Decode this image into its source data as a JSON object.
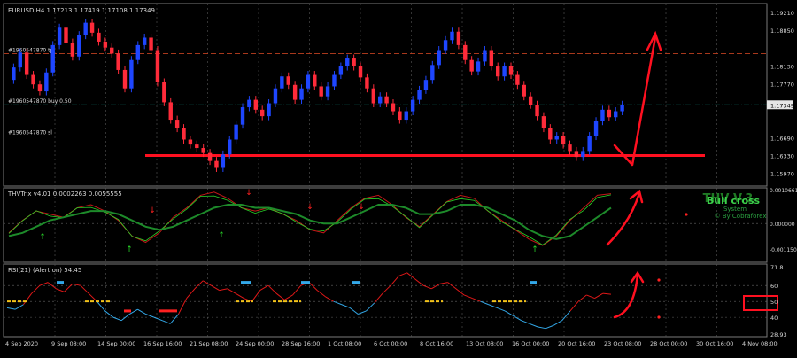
{
  "main_panel": {
    "header": "EURUSD,H4 1.17213 1.17419 1.17108 1.17349",
    "price_ticks": [
      "1.19210",
      "1.18850",
      "1.18130",
      "1.17770",
      "1.17349",
      "1.16690",
      "1.16330",
      "1.15970"
    ],
    "current_price": "1.17349",
    "order_labels": [
      {
        "text": "#1960547870 tp",
        "price": 1.1838
      },
      {
        "text": "#1960547870 buy 0.50",
        "price": 1.1735
      },
      {
        "text": "#1960547870 sl",
        "price": 1.1672
      }
    ],
    "support_price": 1.1633,
    "colors": {
      "bull": "#1e46ff",
      "bear": "#ff2b3a",
      "support": "#ff1020",
      "buy_line": "#10b0a0",
      "order_line": "#c04020"
    }
  },
  "thv_panel": {
    "header": "THVTrix v4.01 0.0002263 0.0055555",
    "ticks": [
      "0.00106613",
      "0.000000",
      "-0.0011502"
    ],
    "watermark_title": "THV V.3",
    "watermark_overlay": "Bull cross",
    "watermark_subtitle": "System",
    "watermark_credit": "© By Cobraforex"
  },
  "rsi_panel": {
    "header": "RSI(21) (Alert on) 54.45",
    "ticks": [
      "71.8",
      "60",
      "50",
      "40",
      "28.93"
    ],
    "highlight_level": "50"
  },
  "x_axis": {
    "labels": [
      "4 Sep 2020",
      "9 Sep 08:00",
      "14 Sep 00:00",
      "16 Sep 16:00",
      "21 Sep 08:00",
      "24 Sep 00:00",
      "28 Sep 16:00",
      "1 Oct 08:00",
      "6 Oct 00:00",
      "8 Oct 16:00",
      "13 Oct 08:00",
      "16 Oct 00:00",
      "20 Oct 16:00",
      "23 Oct 08:00",
      "28 Oct 00:00",
      "30 Oct 16:00",
      "4 Nov 08:00"
    ]
  },
  "chart_data": {
    "type": "candlestick",
    "title": "EURUSD,H4",
    "ylim": [
      1.1575,
      1.1935
    ],
    "close_path": [
      1.1785,
      1.181,
      1.184,
      1.1795,
      1.1776,
      1.1762,
      1.18,
      1.1855,
      1.189,
      1.186,
      1.1832,
      1.1875,
      1.19,
      1.188,
      1.1862,
      1.185,
      1.1838,
      1.1805,
      1.1768,
      1.1825,
      1.1855,
      1.187,
      1.1845,
      1.178,
      1.174,
      1.1705,
      1.1688,
      1.1665,
      1.1655,
      1.1648,
      1.1638,
      1.1622,
      1.1608,
      1.1635,
      1.1665,
      1.1695,
      1.173,
      1.1745,
      1.1725,
      1.1712,
      1.1738,
      1.1768,
      1.1792,
      1.1775,
      1.1745,
      1.1768,
      1.1795,
      1.1772,
      1.1752,
      1.1772,
      1.1795,
      1.1812,
      1.1828,
      1.1812,
      1.179,
      1.1768,
      1.1738,
      1.1752,
      1.1738,
      1.1722,
      1.1705,
      1.1722,
      1.1745,
      1.1765,
      1.1785,
      1.1815,
      1.1845,
      1.1865,
      1.1882,
      1.1855,
      1.1825,
      1.1802,
      1.1822,
      1.1845,
      1.1812,
      1.1792,
      1.1812,
      1.1795,
      1.1775,
      1.1752,
      1.1735,
      1.1712,
      1.1688,
      1.1665,
      1.1672,
      1.1655,
      1.1642,
      1.163,
      1.1642,
      1.1672,
      1.1702,
      1.1725,
      1.171,
      1.1722,
      1.1735
    ],
    "support_level": 1.1633,
    "thv_fast": [
      -0.0003,
      0.0001,
      0.0004,
      0.0003,
      0.0002,
      0.0005,
      0.0006,
      0.0004,
      0.0001,
      -0.0004,
      -0.0006,
      -0.0003,
      0.0002,
      0.0005,
      0.0009,
      0.001,
      0.0008,
      0.0005,
      0.0004,
      0.0005,
      0.0003,
      0.0001,
      -0.0002,
      -0.0003,
      0.0001,
      0.0005,
      0.0008,
      0.0009,
      0.0006,
      0.0002,
      -0.0001,
      0.0003,
      0.0007,
      0.0009,
      0.0008,
      0.0004,
      0.0001,
      -0.0002,
      -0.0005,
      -0.0007,
      -0.0004,
      0.0001,
      0.0005,
      0.0009,
      0.00095
    ],
    "thv_slow": [
      -0.0004,
      -0.0003,
      -0.0001,
      0.0001,
      0.0002,
      0.0003,
      0.0004,
      0.0004,
      0.0003,
      0.0001,
      -0.0001,
      -0.0002,
      -0.0001,
      0.0001,
      0.0003,
      0.0005,
      0.0006,
      0.0006,
      0.0005,
      0.0005,
      0.0004,
      0.0003,
      0.0001,
      0.0,
      0.0,
      0.0002,
      0.0004,
      0.0006,
      0.0006,
      0.0005,
      0.0003,
      0.0003,
      0.0004,
      0.0006,
      0.0006,
      0.0005,
      0.0003,
      0.0001,
      -0.0002,
      -0.0004,
      -0.0005,
      -0.0004,
      -0.0001,
      0.0002,
      0.0005
    ],
    "rsi": [
      46,
      45,
      48,
      55,
      60,
      62,
      58,
      56,
      61,
      60,
      55,
      50,
      44,
      40,
      38,
      42,
      45,
      42,
      40,
      38,
      36,
      42,
      52,
      58,
      63,
      60,
      57,
      58,
      55,
      52,
      50,
      57,
      60,
      55,
      51,
      54,
      60,
      62,
      57,
      53,
      50,
      48,
      46,
      42,
      44,
      49,
      55,
      60,
      66,
      68,
      64,
      60,
      58,
      61,
      62,
      58,
      54,
      52,
      50,
      48,
      46,
      44,
      41,
      38,
      36,
      34,
      33,
      35,
      38,
      44,
      50,
      54,
      52,
      55,
      54.45
    ]
  }
}
